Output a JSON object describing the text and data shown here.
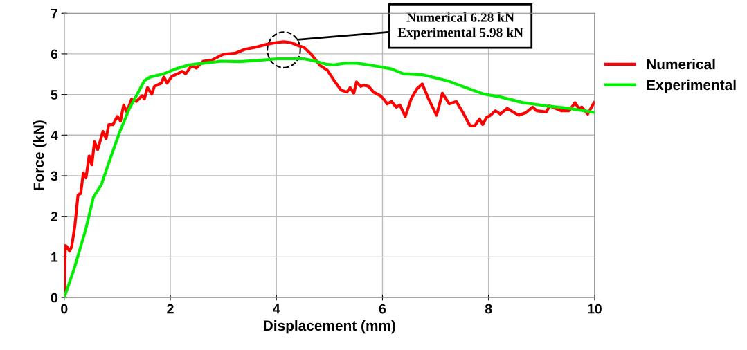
{
  "chart_data": {
    "type": "line",
    "xlabel": "Displacement (mm)",
    "ylabel": "Force (kN)",
    "xlim": [
      0,
      10
    ],
    "ylim": [
      0,
      7
    ],
    "xticks": [
      0,
      2,
      4,
      6,
      8,
      10
    ],
    "yticks": [
      0,
      1,
      2,
      3,
      4,
      5,
      6,
      7
    ],
    "grid": true,
    "legend": "right",
    "marker": "none",
    "line_style": "solid",
    "annotations": [
      "Numerical 6.28 kN\nExperimental 5.98 kN"
    ],
    "series": [
      {
        "name": "Numerical",
        "color": "#ff0000",
        "x": [
          0,
          0.02,
          0.05,
          0.1,
          0.14,
          0.2,
          0.26,
          0.31,
          0.36,
          0.41,
          0.47,
          0.52,
          0.57,
          0.63,
          0.73,
          0.79,
          0.84,
          0.92,
          1.0,
          1.06,
          1.12,
          1.18,
          1.27,
          1.36,
          1.47,
          1.51,
          1.57,
          1.65,
          1.7,
          1.83,
          1.88,
          1.94,
          2.03,
          2.14,
          2.22,
          2.29,
          2.4,
          2.49,
          2.62,
          2.79,
          3.0,
          3.23,
          3.4,
          3.66,
          3.83,
          4.0,
          4.14,
          4.27,
          4.44,
          4.52,
          4.65,
          4.83,
          4.96,
          5.09,
          5.22,
          5.33,
          5.39,
          5.46,
          5.51,
          5.59,
          5.65,
          5.74,
          5.83,
          5.96,
          6.02,
          6.09,
          6.17,
          6.26,
          6.33,
          6.43,
          6.54,
          6.65,
          6.75,
          6.87,
          7.02,
          7.13,
          7.26,
          7.39,
          7.52,
          7.65,
          7.74,
          7.83,
          7.89,
          7.96,
          8.04,
          8.13,
          8.22,
          8.35,
          8.46,
          8.57,
          8.7,
          8.83,
          8.91,
          9.09,
          9.15,
          9.26,
          9.37,
          9.52,
          9.63,
          9.7,
          9.76,
          9.87,
          9.93,
          9.99
        ],
        "values": [
          0,
          1.28,
          1.25,
          1.14,
          1.25,
          1.76,
          2.53,
          2.56,
          3.07,
          2.95,
          3.49,
          3.27,
          3.84,
          3.64,
          4.09,
          3.92,
          4.26,
          4.26,
          4.46,
          4.35,
          4.74,
          4.57,
          4.89,
          4.83,
          4.97,
          4.89,
          5.17,
          5.01,
          5.2,
          5.28,
          5.43,
          5.28,
          5.45,
          5.51,
          5.57,
          5.51,
          5.71,
          5.65,
          5.82,
          5.85,
          5.99,
          6.02,
          6.11,
          6.18,
          6.24,
          6.28,
          6.3,
          6.28,
          6.19,
          6.16,
          6.0,
          5.71,
          5.6,
          5.34,
          5.11,
          5.06,
          5.17,
          5.03,
          5.31,
          5.2,
          5.23,
          5.2,
          5.06,
          4.97,
          4.89,
          4.77,
          4.83,
          4.69,
          4.74,
          4.46,
          4.89,
          5.14,
          5.26,
          4.89,
          4.49,
          5.03,
          4.77,
          4.83,
          4.55,
          4.23,
          4.23,
          4.4,
          4.26,
          4.43,
          4.49,
          4.6,
          4.52,
          4.66,
          4.57,
          4.49,
          4.55,
          4.69,
          4.6,
          4.57,
          4.72,
          4.66,
          4.6,
          4.6,
          4.8,
          4.66,
          4.69,
          4.52,
          4.66,
          4.8
        ]
      },
      {
        "name": "Experimental",
        "color": "#00ee00",
        "x": [
          0,
          0.18,
          0.4,
          0.55,
          0.7,
          0.88,
          1.05,
          1.23,
          1.36,
          1.51,
          1.62,
          1.88,
          2.1,
          2.36,
          2.62,
          2.97,
          3.31,
          3.75,
          4.01,
          4.52,
          4.74,
          4.96,
          5.09,
          5.3,
          5.52,
          5.83,
          6.17,
          6.39,
          6.78,
          7.22,
          7.57,
          7.91,
          8.22,
          8.65,
          9.09,
          9.52,
          9.99
        ],
        "values": [
          0,
          0.68,
          1.65,
          2.47,
          2.78,
          3.47,
          4.09,
          4.66,
          4.97,
          5.34,
          5.43,
          5.51,
          5.63,
          5.73,
          5.77,
          5.82,
          5.81,
          5.85,
          5.88,
          5.88,
          5.82,
          5.74,
          5.73,
          5.77,
          5.77,
          5.71,
          5.63,
          5.51,
          5.48,
          5.34,
          5.17,
          5.01,
          4.94,
          4.8,
          4.72,
          4.66,
          4.56
        ]
      }
    ]
  }
}
